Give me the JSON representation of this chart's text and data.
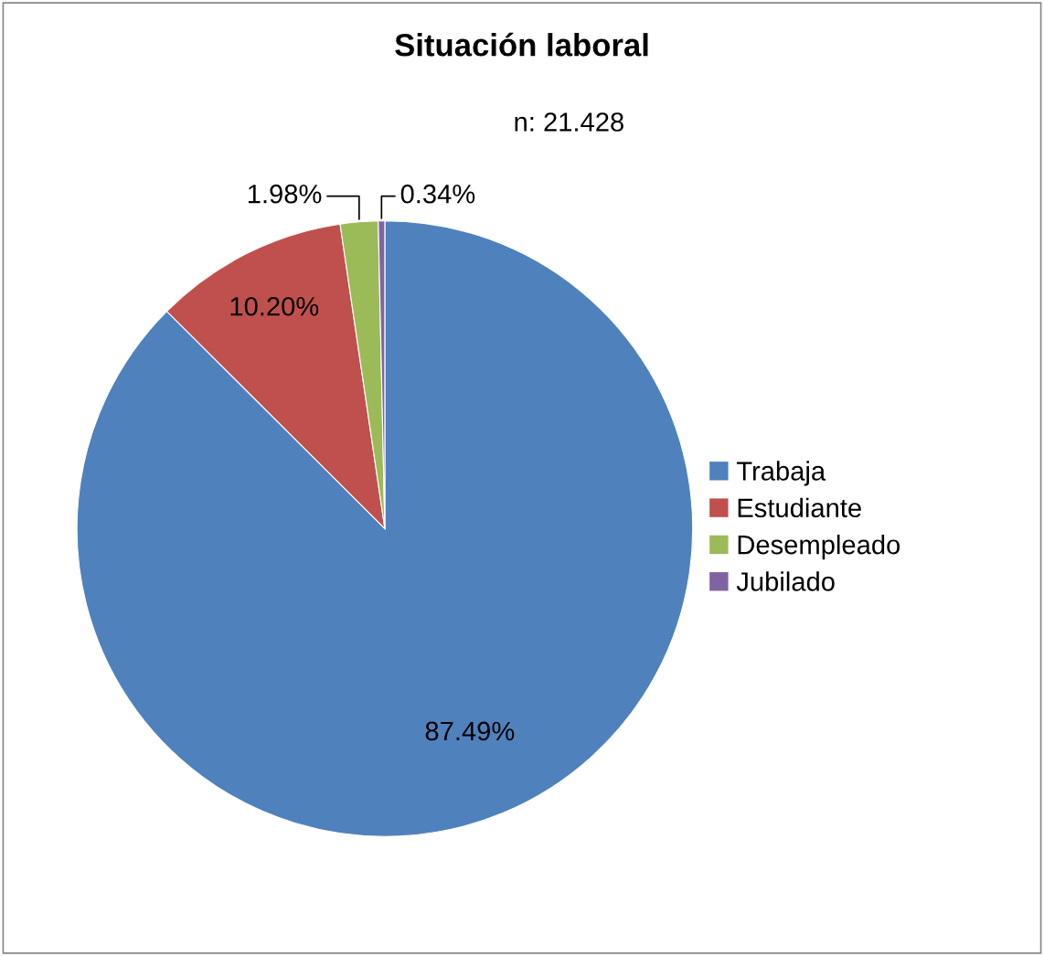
{
  "chart_data": {
    "type": "pie",
    "title": "Situación laboral",
    "categories": [
      "Trabaja",
      "Estudiante",
      "Desempleado",
      "Jubilado"
    ],
    "values": [
      87.49,
      10.2,
      1.98,
      0.34
    ],
    "colors": [
      "#4f81bd",
      "#c0504d",
      "#9bbb59",
      "#8064a2"
    ],
    "value_labels": [
      "87.49%",
      "10.20%",
      "1.98%",
      "0.34%"
    ],
    "annotations": [
      "n: 21.428"
    ],
    "legend": "right"
  }
}
